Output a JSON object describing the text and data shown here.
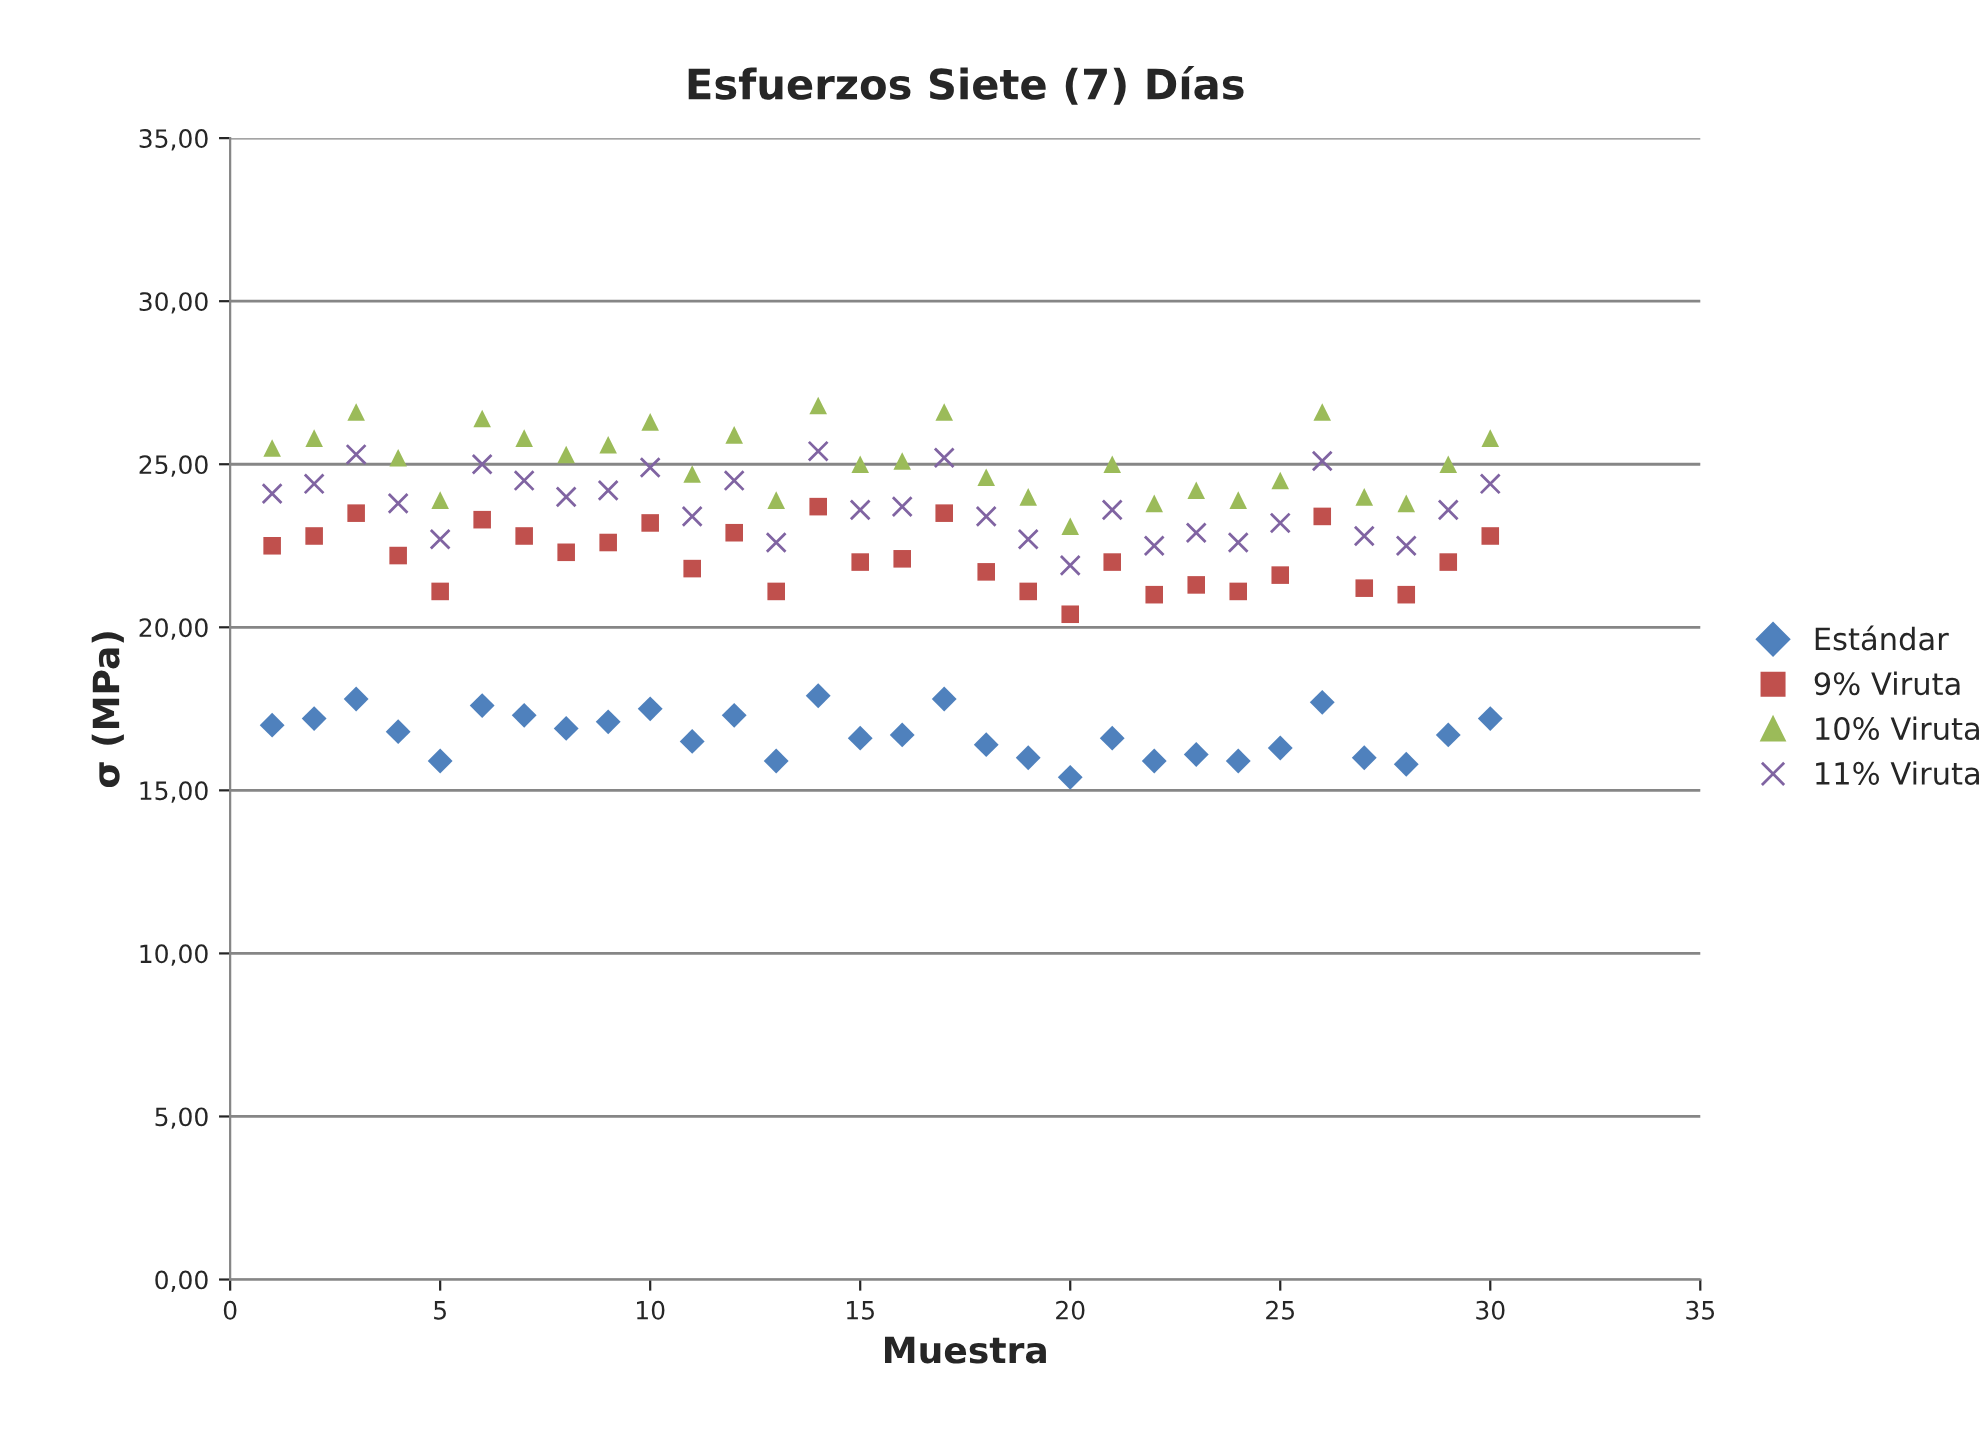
{
  "chart_data": {
    "type": "scatter",
    "title": "Esfuerzos Siete (7) Días",
    "xlabel": "Muestra",
    "ylabel": "σ (MPa)",
    "x": [
      1,
      2,
      3,
      4,
      5,
      6,
      7,
      8,
      9,
      10,
      11,
      12,
      13,
      14,
      15,
      16,
      17,
      18,
      19,
      20,
      21,
      22,
      23,
      24,
      25,
      26,
      27,
      28,
      29,
      30
    ],
    "series": [
      {
        "name": "Estándar",
        "color": "#4f81bd",
        "marker": "diamond",
        "values": [
          17.0,
          17.2,
          17.8,
          16.8,
          15.9,
          17.6,
          17.3,
          16.9,
          17.1,
          17.5,
          16.5,
          17.3,
          15.9,
          17.9,
          16.6,
          16.7,
          17.8,
          16.4,
          16.0,
          15.4,
          16.6,
          15.9,
          16.1,
          15.9,
          16.3,
          17.7,
          16.0,
          15.8,
          16.7,
          17.2
        ]
      },
      {
        "name": "9% Viruta",
        "color": "#c0504d",
        "marker": "square",
        "values": [
          22.5,
          22.8,
          23.5,
          22.2,
          21.1,
          23.3,
          22.8,
          22.3,
          22.6,
          23.2,
          21.8,
          22.9,
          21.1,
          23.7,
          22.0,
          22.1,
          23.5,
          21.7,
          21.1,
          20.4,
          22.0,
          21.0,
          21.3,
          21.1,
          21.6,
          23.4,
          21.2,
          21.0,
          22.0,
          22.8
        ]
      },
      {
        "name": "10% Viruta",
        "color": "#9bbb59",
        "marker": "triangle",
        "values": [
          25.5,
          25.8,
          26.6,
          25.2,
          23.9,
          26.4,
          25.8,
          25.3,
          25.6,
          26.3,
          24.7,
          25.9,
          23.9,
          26.8,
          25.0,
          25.1,
          26.6,
          24.6,
          24.0,
          23.1,
          25.0,
          23.8,
          24.2,
          23.9,
          24.5,
          26.6,
          24.0,
          23.8,
          25.0,
          25.8
        ]
      },
      {
        "name": "11% Viruta",
        "color": "#8064a2",
        "marker": "cross",
        "values": [
          24.1,
          24.4,
          25.3,
          23.8,
          22.7,
          25.0,
          24.5,
          24.0,
          24.2,
          24.9,
          23.4,
          24.5,
          22.6,
          25.4,
          23.6,
          23.7,
          25.2,
          23.4,
          22.7,
          21.9,
          23.6,
          22.5,
          22.9,
          22.6,
          23.2,
          25.1,
          22.8,
          22.5,
          23.6,
          24.4
        ]
      }
    ],
    "xlim": [
      0,
      35
    ],
    "xticks": [
      0,
      5,
      10,
      15,
      20,
      25,
      30,
      35
    ],
    "ylim": [
      0,
      35
    ],
    "yticks": [
      {
        "value": 0,
        "label": "0,00"
      },
      {
        "value": 5,
        "label": "5,00"
      },
      {
        "value": 10,
        "label": "10,00"
      },
      {
        "value": 15,
        "label": "15,00"
      },
      {
        "value": 20,
        "label": "20,00"
      },
      {
        "value": 25,
        "label": "25,00"
      },
      {
        "value": 30,
        "label": "30,00"
      },
      {
        "value": 35,
        "label": "35,00"
      }
    ],
    "grid": "y",
    "legend": "right"
  }
}
